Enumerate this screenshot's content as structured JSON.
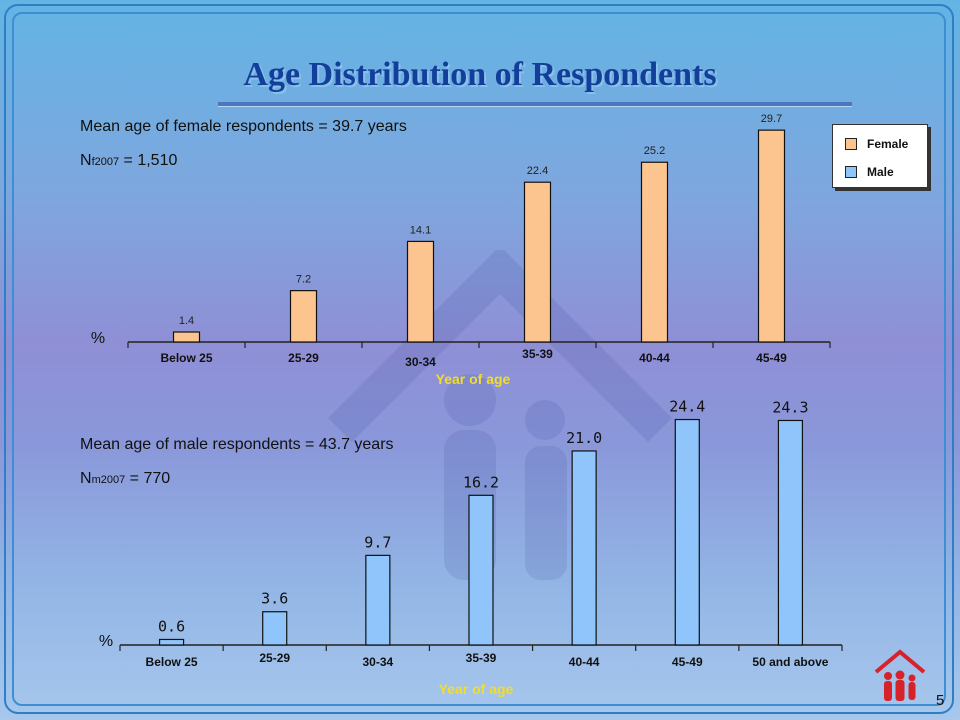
{
  "title": "Age Distribution of Respondents",
  "female_note": {
    "mean_text": "Mean age of female respondents = 39.7 years",
    "n_prefix": "N",
    "n_sub": "f2007",
    "n_value": " = 1,510"
  },
  "male_note": {
    "mean_text": "Mean age of male respondents = 43.7 years",
    "n_prefix": "N",
    "n_sub": "m2007",
    "n_value": " = 770"
  },
  "legend": {
    "female": "Female",
    "male": "Male"
  },
  "page_number": "5",
  "colors": {
    "female": "#fcc58f",
    "male": "#8fc5fb",
    "axis_label": "#f2dd2a",
    "title": "#123f9a"
  },
  "chart_data": [
    {
      "type": "bar",
      "series": [
        {
          "name": "Female",
          "values": [
            1.4,
            7.2,
            14.1,
            22.4,
            25.2,
            29.7
          ]
        }
      ],
      "categories": [
        "Below 25",
        "25-29",
        "30-34",
        "35-39",
        "40-44",
        "45-49"
      ],
      "xlabel": "Year of age",
      "ylabel": "%",
      "ylim": [
        0,
        30
      ],
      "legend": "top-right",
      "grid": false
    },
    {
      "type": "bar",
      "series": [
        {
          "name": "Male",
          "values": [
            0.6,
            3.6,
            9.7,
            16.2,
            21.0,
            24.4,
            24.3
          ]
        }
      ],
      "categories": [
        "Below 25",
        "25-29",
        "30-34",
        "35-39",
        "40-44",
        "45-49",
        "50 and above"
      ],
      "value_labels": [
        "0.6",
        "3.6",
        "9.7",
        "16.2",
        "21.0",
        "24.4",
        "24.3"
      ],
      "xlabel": "Year of age",
      "ylabel": "%",
      "ylim": [
        0,
        25
      ],
      "grid": false
    }
  ]
}
